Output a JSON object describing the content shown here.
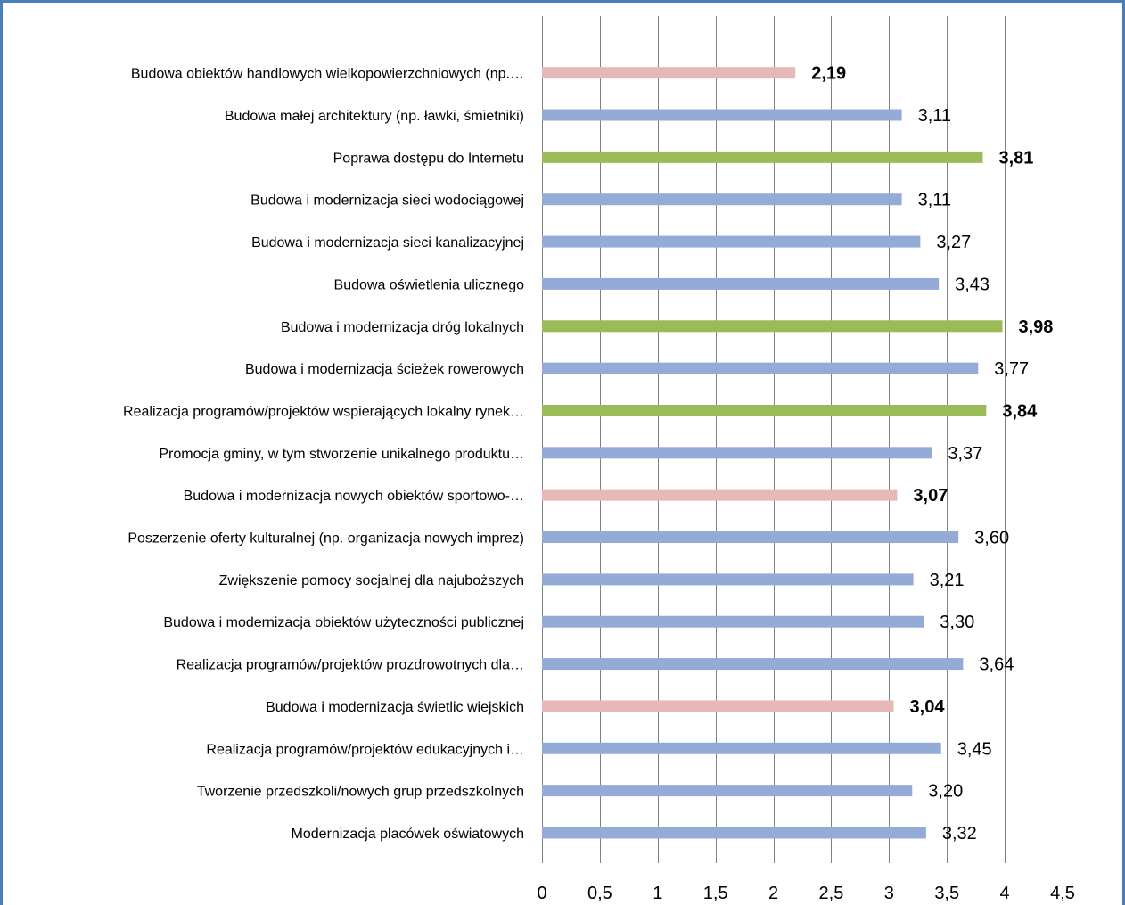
{
  "chart_data": {
    "type": "bar",
    "orientation": "horizontal",
    "categories": [
      "Budowa obiektów handlowych wielkopowierzchniowych (np.…",
      "Budowa małej architektury (np. ławki, śmietniki)",
      "Poprawa dostępu do Internetu",
      "Budowa i modernizacja sieci wodociągowej",
      "Budowa i modernizacja sieci kanalizacyjnej",
      "Budowa oświetlenia ulicznego",
      "Budowa i modernizacja dróg lokalnych",
      "Budowa i modernizacja ścieżek rowerowych",
      "Realizacja programów/projektów wspierających lokalny rynek…",
      "Promocja gminy, w tym stworzenie unikalnego produktu…",
      "Budowa i modernizacja nowych obiektów sportowo-…",
      "Poszerzenie oferty kulturalnej (np. organizacja nowych imprez)",
      "Zwiększenie pomocy socjalnej dla najuboższych",
      "Budowa i modernizacja obiektów użyteczności publicznej",
      "Realizacja programów/projektów prozdrowotnych dla…",
      "Budowa i modernizacja świetlic wiejskich",
      "Realizacja programów/projektów edukacyjnych i…",
      "Tworzenie przedszkoli/nowych grup przedszkolnych",
      "Modernizacja placówek oświatowych"
    ],
    "values": [
      2.19,
      3.11,
      3.81,
      3.11,
      3.27,
      3.43,
      3.98,
      3.77,
      3.84,
      3.37,
      3.07,
      3.6,
      3.21,
      3.3,
      3.64,
      3.04,
      3.45,
      3.2,
      3.32
    ],
    "value_labels": [
      "2,19",
      "3,11",
      "3,81",
      "3,11",
      "3,27",
      "3,43",
      "3,98",
      "3,77",
      "3,84",
      "3,37",
      "3,07",
      "3,60",
      "3,21",
      "3,30",
      "3,64",
      "3,04",
      "3,45",
      "3,20",
      "3,32"
    ],
    "highlight": [
      "low",
      "normal",
      "high",
      "normal",
      "normal",
      "normal",
      "high",
      "normal",
      "high",
      "normal",
      "low",
      "normal",
      "normal",
      "normal",
      "normal",
      "low",
      "normal",
      "normal",
      "normal"
    ],
    "colors": {
      "normal": "#95abd7",
      "high": "#9bbb59",
      "low": "#e6b9b8",
      "grid": "#808080",
      "frame": "#4a7ebb"
    },
    "x_ticks": [
      "0",
      "0,5",
      "1",
      "1,5",
      "2",
      "2,5",
      "3",
      "3,5",
      "4",
      "4,5"
    ],
    "xlim": [
      0,
      4.5
    ],
    "grid": true,
    "title": "",
    "xlabel": "",
    "ylabel": ""
  }
}
